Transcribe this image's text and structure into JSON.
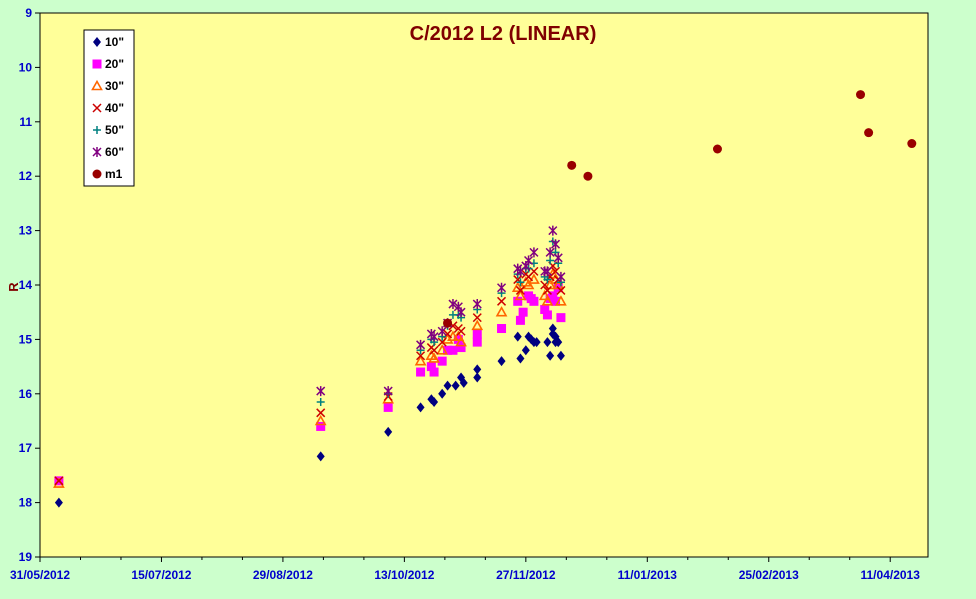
{
  "chart_data": {
    "type": "scatter",
    "title": "C/2012 L2 (LINEAR)",
    "ylabel": "R",
    "xlabel": "",
    "x_axis": {
      "type": "date",
      "min": "2012-05-31",
      "max": "2013-04-25",
      "tick_labels": [
        "31/05/2012",
        "15/07/2012",
        "29/08/2012",
        "13/10/2012",
        "27/11/2012",
        "11/01/2013",
        "25/02/2013",
        "11/04/2013"
      ]
    },
    "y_axis": {
      "min": 9,
      "max": 19,
      "reversed": true,
      "ticks": [
        9,
        10,
        11,
        12,
        13,
        14,
        15,
        16,
        17,
        18,
        19
      ]
    },
    "grid": false,
    "legend_position": "top-left",
    "colors": {
      "plot_background": "#ffff99",
      "page_background": "#ccffcc",
      "axis_label_color": "#0000cc",
      "title_color": "#800000"
    },
    "series": [
      {
        "name": "10\"",
        "marker": "diamond",
        "color": "#000080",
        "x": [
          "2012-06-07",
          "2012-09-12",
          "2012-10-07",
          "2012-10-19",
          "2012-10-23",
          "2012-10-24",
          "2012-10-27",
          "2012-10-29",
          "2012-11-01",
          "2012-11-03",
          "2012-11-04",
          "2012-11-09",
          "2012-11-09",
          "2012-11-18",
          "2012-11-24",
          "2012-11-25",
          "2012-11-27",
          "2012-11-28",
          "2012-11-29",
          "2012-11-30",
          "2012-12-01",
          "2012-12-05",
          "2012-12-06",
          "2012-12-07",
          "2012-12-07",
          "2012-12-08",
          "2012-12-08",
          "2012-12-09",
          "2012-12-10"
        ],
        "y": [
          18.0,
          17.15,
          16.7,
          16.25,
          16.1,
          16.15,
          16.0,
          15.85,
          15.85,
          15.7,
          15.8,
          15.55,
          15.7,
          15.4,
          14.95,
          15.35,
          15.2,
          14.95,
          15.0,
          15.05,
          15.05,
          15.05,
          15.3,
          14.8,
          14.9,
          14.95,
          15.05,
          15.05,
          15.3
        ]
      },
      {
        "name": "20\"",
        "marker": "square",
        "color": "#ff00ff",
        "x": [
          "2012-06-07",
          "2012-09-12",
          "2012-10-07",
          "2012-10-19",
          "2012-10-23",
          "2012-10-24",
          "2012-10-27",
          "2012-10-29",
          "2012-10-31",
          "2012-11-02",
          "2012-11-03",
          "2012-11-09",
          "2012-11-09",
          "2012-11-18",
          "2012-11-24",
          "2012-11-25",
          "2012-11-26",
          "2012-11-28",
          "2012-11-29",
          "2012-11-30",
          "2012-12-04",
          "2012-12-05",
          "2012-12-06",
          "2012-12-07",
          "2012-12-08",
          "2012-12-09",
          "2012-12-10"
        ],
        "y": [
          17.6,
          16.6,
          16.25,
          15.6,
          15.5,
          15.6,
          15.4,
          15.2,
          15.2,
          15.0,
          15.15,
          14.9,
          15.05,
          14.8,
          14.3,
          14.65,
          14.5,
          14.2,
          14.25,
          14.3,
          14.45,
          14.55,
          14.25,
          14.2,
          14.3,
          14.05,
          14.6
        ]
      },
      {
        "name": "30\"",
        "marker": "triangle",
        "color": "#ff6600",
        "x": [
          "2012-06-07",
          "2012-09-12",
          "2012-10-07",
          "2012-10-19",
          "2012-10-23",
          "2012-10-24",
          "2012-10-27",
          "2012-10-29",
          "2012-10-31",
          "2012-11-02",
          "2012-11-03",
          "2012-11-09",
          "2012-11-18",
          "2012-11-24",
          "2012-11-25",
          "2012-11-27",
          "2012-11-28",
          "2012-11-30",
          "2012-12-04",
          "2012-12-05",
          "2012-12-06",
          "2012-12-07",
          "2012-12-08",
          "2012-12-09",
          "2012-12-10"
        ],
        "y": [
          17.65,
          16.5,
          16.1,
          15.4,
          15.3,
          15.35,
          15.2,
          15.0,
          14.95,
          14.95,
          15.05,
          14.75,
          14.5,
          14.05,
          14.2,
          13.95,
          14.0,
          13.9,
          14.2,
          14.3,
          14.0,
          13.8,
          13.9,
          14.0,
          14.3
        ]
      },
      {
        "name": "40\"",
        "marker": "cross",
        "color": "#cc0000",
        "x": [
          "2012-06-07",
          "2012-09-12",
          "2012-10-07",
          "2012-10-19",
          "2012-10-23",
          "2012-10-24",
          "2012-10-27",
          "2012-10-29",
          "2012-10-31",
          "2012-11-02",
          "2012-11-03",
          "2012-11-09",
          "2012-11-18",
          "2012-11-24",
          "2012-11-25",
          "2012-11-27",
          "2012-11-28",
          "2012-11-30",
          "2012-12-04",
          "2012-12-05",
          "2012-12-06",
          "2012-12-07",
          "2012-12-08",
          "2012-12-09",
          "2012-12-10"
        ],
        "y": [
          17.6,
          16.35,
          16.05,
          15.3,
          15.15,
          15.2,
          15.05,
          14.9,
          14.75,
          14.8,
          14.85,
          14.6,
          14.3,
          13.9,
          14.1,
          13.8,
          13.85,
          13.75,
          14.0,
          14.1,
          13.85,
          13.65,
          13.75,
          13.9,
          14.1
        ]
      },
      {
        "name": "50\"",
        "marker": "plus",
        "color": "#008080",
        "x": [
          "2012-09-12",
          "2012-10-07",
          "2012-10-19",
          "2012-10-23",
          "2012-10-24",
          "2012-10-27",
          "2012-10-29",
          "2012-10-31",
          "2012-11-02",
          "2012-11-03",
          "2012-11-09",
          "2012-11-18",
          "2012-11-24",
          "2012-11-25",
          "2012-11-27",
          "2012-11-28",
          "2012-11-30",
          "2012-12-04",
          "2012-12-05",
          "2012-12-06",
          "2012-12-07",
          "2012-12-08",
          "2012-12-09",
          "2012-12-10"
        ],
        "y": [
          16.15,
          16.0,
          15.2,
          15.0,
          15.05,
          14.95,
          14.75,
          14.55,
          14.55,
          14.6,
          14.45,
          14.15,
          13.8,
          13.95,
          13.7,
          13.7,
          13.6,
          13.85,
          13.9,
          13.55,
          13.2,
          13.4,
          13.6,
          13.95
        ]
      },
      {
        "name": "60\"",
        "marker": "star",
        "color": "#800080",
        "x": [
          "2012-09-12",
          "2012-10-07",
          "2012-10-19",
          "2012-10-23",
          "2012-10-24",
          "2012-10-27",
          "2012-10-29",
          "2012-10-31",
          "2012-11-02",
          "2012-11-03",
          "2012-11-09",
          "2012-11-18",
          "2012-11-24",
          "2012-11-25",
          "2012-11-27",
          "2012-11-28",
          "2012-11-30",
          "2012-12-04",
          "2012-12-05",
          "2012-12-06",
          "2012-12-07",
          "2012-12-08",
          "2012-12-09",
          "2012-12-10"
        ],
        "y": [
          15.95,
          15.95,
          15.1,
          14.9,
          14.95,
          14.85,
          14.7,
          14.35,
          14.4,
          14.5,
          14.35,
          14.05,
          13.7,
          13.75,
          13.65,
          13.55,
          13.4,
          13.75,
          13.75,
          13.4,
          13.0,
          13.25,
          13.5,
          13.85
        ]
      },
      {
        "name": "m1",
        "marker": "circle",
        "color": "#990000",
        "x": [
          "2012-10-29",
          "2012-12-14",
          "2012-12-20",
          "2013-02-06",
          "2013-03-31",
          "2013-04-03",
          "2013-04-19"
        ],
        "y": [
          14.7,
          11.8,
          12.0,
          11.5,
          10.5,
          11.2,
          11.4
        ]
      }
    ]
  }
}
